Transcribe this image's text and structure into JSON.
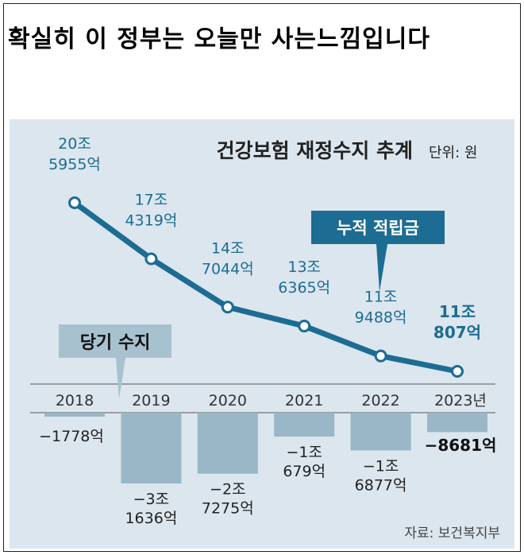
{
  "headline": "확실히 이 정부는 오늘만 사는느낌입니다",
  "colors": {
    "line": "#1d6c93",
    "bar": "#9ab7c7",
    "panel": "#dce6ee",
    "callout_line": "#1d6c93",
    "callout_bar": "#a8c1cf"
  },
  "chart_data": {
    "type": "line+bar",
    "title": "건강보험 재정수지 추계",
    "unit": "단위: 원",
    "source": "자료: 보건복지부",
    "categories": [
      "2018",
      "2019",
      "2020",
      "2021",
      "2022",
      "2023년"
    ],
    "series": [
      {
        "name": "누적 적립금",
        "type": "line",
        "values_in_eok": [
          205955,
          174319,
          147044,
          136365,
          119488,
          110807
        ],
        "labels": [
          [
            "20조",
            "5955억"
          ],
          [
            "17조",
            "4319억"
          ],
          [
            "14조",
            "7044억"
          ],
          [
            "13조",
            "6365억"
          ],
          [
            "11조",
            "9488억"
          ],
          [
            "11조",
            "807억"
          ]
        ]
      },
      {
        "name": "당기 수지",
        "type": "bar",
        "values_in_eok": [
          -1778,
          -31636,
          -27275,
          -10679,
          -16877,
          -8681
        ],
        "labels": [
          [
            "−1778억"
          ],
          [
            "−3조",
            "1636억"
          ],
          [
            "−2조",
            "7275억"
          ],
          [
            "−1조",
            "679억"
          ],
          [
            "−1조",
            "6877억"
          ],
          [
            "−8681억"
          ]
        ]
      }
    ]
  }
}
